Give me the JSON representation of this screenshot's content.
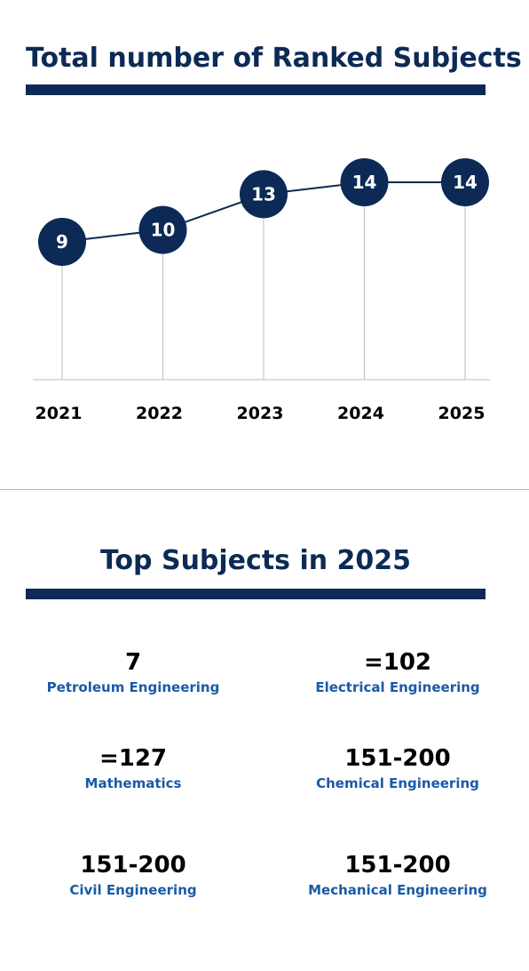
{
  "header": {
    "title": "Total number of Ranked Subjects"
  },
  "chart_data": {
    "type": "line",
    "categories": [
      "2021",
      "2022",
      "2023",
      "2024",
      "2025"
    ],
    "values": [
      9,
      10,
      13,
      14,
      14
    ],
    "title": "Total number of Ranked Subjects",
    "xlabel": "",
    "ylabel": "",
    "grid": false,
    "marker": "circle-with-data-label",
    "colors": {
      "marker": "#0c2a55",
      "line": "#0c2a55",
      "axis": "#b5bcc6",
      "label": "#ffffff"
    }
  },
  "top_subjects": {
    "title": "Top Subjects in 2025",
    "items": [
      {
        "rank": "7",
        "name": "Petroleum Engineering"
      },
      {
        "rank": "=102",
        "name": "Electrical Engineering"
      },
      {
        "rank": "=127",
        "name": "Mathematics"
      },
      {
        "rank": "151-200",
        "name": "Chemical Engineering"
      },
      {
        "rank": "151-200",
        "name": "Civil Engineering"
      },
      {
        "rank": "151-200",
        "name": "Mechanical Engineering"
      }
    ]
  }
}
